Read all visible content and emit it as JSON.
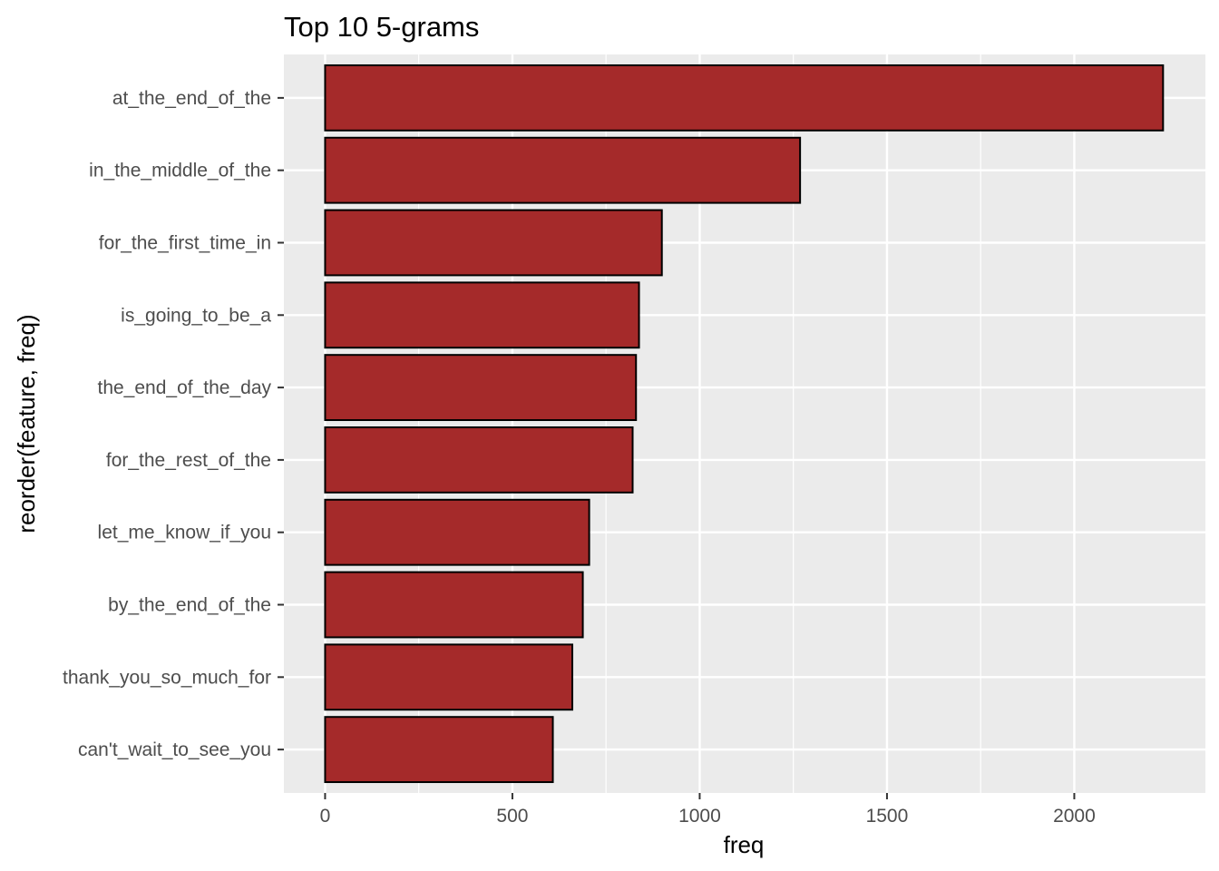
{
  "chart_data": {
    "type": "bar",
    "orientation": "horizontal",
    "title": "Top 10 5-grams",
    "xlabel": "freq",
    "ylabel": "reorder(feature, freq)",
    "categories": [
      "at_the_end_of_the",
      "in_the_middle_of_the",
      "for_the_first_time_in",
      "is_going_to_be_a",
      "the_end_of_the_day",
      "for_the_rest_of_the",
      "let_me_know_if_you",
      "by_the_end_of_the",
      "thank_you_so_much_for",
      "can't_wait_to_see_you"
    ],
    "values": [
      2237,
      1268,
      899,
      838,
      830,
      821,
      705,
      688,
      660,
      608
    ],
    "xlim": [
      -110,
      2350
    ],
    "xticks": [
      0,
      500,
      1000,
      1500,
      2000
    ],
    "xtick_labels": [
      "0",
      "500",
      "1000",
      "1500",
      "2000"
    ],
    "grid": true,
    "legend": "none",
    "colors": {
      "bar_fill": "#a52a2a",
      "bar_stroke": "#000000",
      "panel_bg": "#ebebeb",
      "grid": "#ffffff",
      "tick_text": "#4d4d4d",
      "tick_mark": "#333333"
    }
  }
}
